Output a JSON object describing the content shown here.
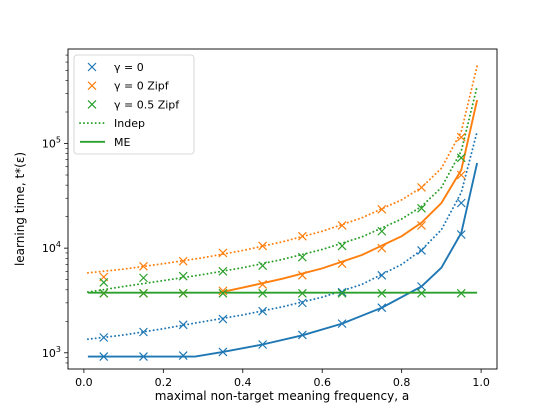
{
  "chart_data": {
    "type": "line",
    "xlabel": "maximal non-target meaning frequency, a",
    "ylabel": "learning time, t*(ε)",
    "xlim": [
      -0.04,
      1.04
    ],
    "ylim": [
      700,
      800000
    ],
    "yscale": "log",
    "grid": false,
    "legend_position": "top-left",
    "x_ticks": [
      "0.0",
      "0.2",
      "0.4",
      "0.6",
      "0.8",
      "1.0"
    ],
    "x_tick_values": [
      0.0,
      0.2,
      0.4,
      0.6,
      0.8,
      1.0
    ],
    "y_ticks": [
      {
        "base": "10",
        "exp": "3",
        "value": 1000
      },
      {
        "base": "10",
        "exp": "4",
        "value": 10000
      },
      {
        "base": "10",
        "exp": "5",
        "value": 100000
      }
    ],
    "colors": {
      "blue": "#1f77b4",
      "orange": "#ff7f0e",
      "green": "#2ca02c"
    },
    "legend": [
      {
        "label": "γ = 0",
        "marker": "x",
        "color": "#1f77b4"
      },
      {
        "label": "γ = 0 Zipf",
        "marker": "x",
        "color": "#ff7f0e"
      },
      {
        "label": "γ = 0.5 Zipf",
        "marker": "x",
        "color": "#2ca02c"
      },
      {
        "label": "Indep",
        "marker": "dotted",
        "color": "#2ca02c"
      },
      {
        "label": "ME",
        "marker": "solid",
        "color": "#2ca02c"
      }
    ],
    "scatter_series": [
      {
        "color": "#1f77b4",
        "x": [
          0.05,
          0.05,
          0.15,
          0.15,
          0.25,
          0.25,
          0.35,
          0.35,
          0.45,
          0.45,
          0.55,
          0.55,
          0.65,
          0.65,
          0.75,
          0.75,
          0.85,
          0.85,
          0.95,
          0.95
        ],
        "y": [
          1400,
          920,
          1580,
          920,
          1850,
          940,
          2100,
          1020,
          2500,
          1200,
          3000,
          1480,
          3800,
          1900,
          5500,
          2700,
          9500,
          4300,
          27000,
          13500
        ]
      },
      {
        "color": "#ff7f0e",
        "x": [
          0.05,
          0.15,
          0.25,
          0.35,
          0.45,
          0.55,
          0.65,
          0.75,
          0.85,
          0.95
        ],
        "y": [
          5300,
          6700,
          7500,
          9000,
          10500,
          13000,
          16500,
          23500,
          38000,
          115000
        ]
      },
      {
        "color": "#ff7f0e",
        "x": [
          0.05,
          0.15,
          0.25,
          0.35,
          0.45,
          0.55,
          0.65,
          0.75,
          0.85,
          0.95
        ],
        "y": [
          3700,
          3700,
          3700,
          3900,
          4500,
          5500,
          7100,
          10000,
          16500,
          50000
        ]
      },
      {
        "color": "#2ca02c",
        "x": [
          0.05,
          0.15,
          0.25,
          0.35,
          0.45,
          0.55,
          0.65,
          0.75,
          0.85,
          0.95
        ],
        "y": [
          4700,
          5200,
          5400,
          6000,
          6800,
          8200,
          10500,
          14500,
          24000,
          73000
        ]
      },
      {
        "color": "#2ca02c",
        "x": [
          0.05,
          0.15,
          0.25,
          0.35,
          0.45,
          0.55,
          0.65,
          0.75,
          0.85,
          0.95
        ],
        "y": [
          3700,
          3700,
          3700,
          3700,
          3700,
          3700,
          3700,
          3700,
          3700,
          3700
        ]
      }
    ],
    "line_series": [
      {
        "color": "#1f77b4",
        "style": "dotted",
        "x": [
          0.01,
          0.1,
          0.2,
          0.3,
          0.4,
          0.5,
          0.6,
          0.7,
          0.8,
          0.85,
          0.9,
          0.95,
          0.99
        ],
        "y": [
          1350,
          1480,
          1700,
          1980,
          2300,
          2750,
          3400,
          4500,
          7000,
          9600,
          15000,
          34000,
          130000
        ]
      },
      {
        "color": "#1f77b4",
        "style": "solid",
        "x": [
          0.01,
          0.1,
          0.2,
          0.28,
          0.35,
          0.45,
          0.55,
          0.65,
          0.75,
          0.85,
          0.9,
          0.95,
          0.99
        ],
        "y": [
          920,
          920,
          920,
          920,
          1020,
          1200,
          1470,
          1900,
          2700,
          4300,
          6500,
          14000,
          65000
        ]
      },
      {
        "color": "#ff7f0e",
        "style": "dotted",
        "x": [
          0.01,
          0.1,
          0.2,
          0.3,
          0.4,
          0.5,
          0.6,
          0.7,
          0.8,
          0.85,
          0.9,
          0.95,
          0.99
        ],
        "y": [
          5800,
          6300,
          7100,
          8100,
          9500,
          11500,
          14500,
          19500,
          29000,
          38000,
          58000,
          130000,
          550000
        ]
      },
      {
        "color": "#ff7f0e",
        "style": "solid",
        "x": [
          0.34,
          0.4,
          0.5,
          0.6,
          0.7,
          0.8,
          0.85,
          0.9,
          0.95,
          0.99
        ],
        "y": [
          3750,
          4200,
          5100,
          6400,
          8600,
          13000,
          17500,
          27000,
          56000,
          260000
        ]
      },
      {
        "color": "#2ca02c",
        "style": "dotted",
        "x": [
          0.01,
          0.1,
          0.2,
          0.3,
          0.4,
          0.5,
          0.6,
          0.7,
          0.8,
          0.85,
          0.9,
          0.95,
          0.99
        ],
        "y": [
          3800,
          4300,
          4900,
          5600,
          6500,
          7800,
          9700,
          12800,
          19000,
          25000,
          38000,
          85000,
          350000
        ]
      },
      {
        "color": "#2ca02c",
        "style": "solid",
        "x": [
          0.01,
          0.99
        ],
        "y": [
          3750,
          3750
        ]
      }
    ]
  }
}
